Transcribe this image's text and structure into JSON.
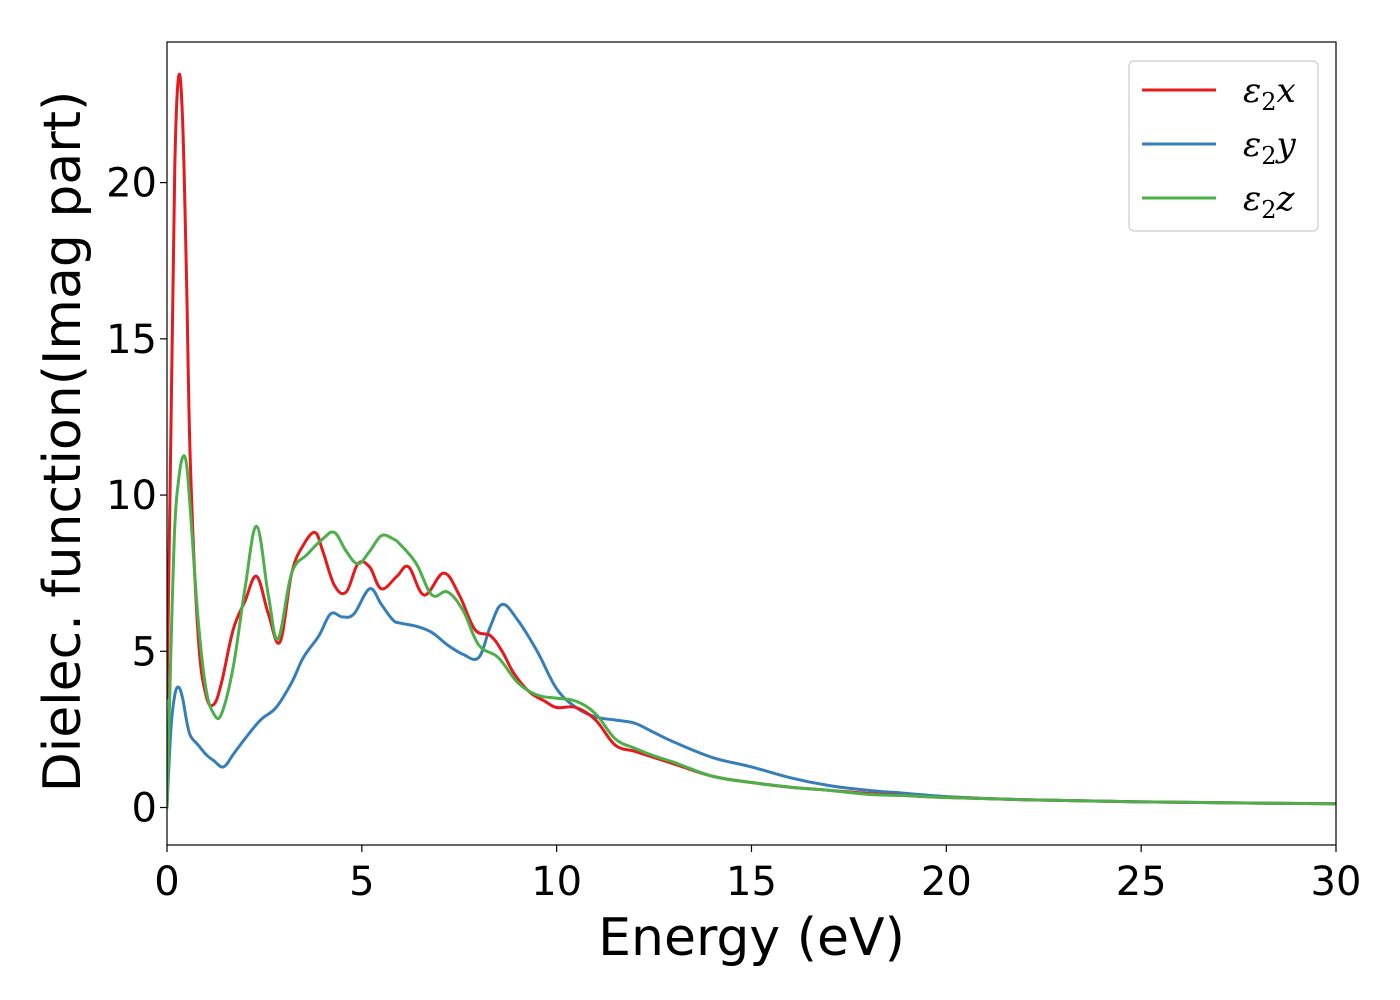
{
  "chart_data": {
    "type": "line",
    "title": "",
    "xlabel": "Energy (eV)",
    "ylabel": "Dielec. function(Imag part)",
    "xlim": [
      0,
      30
    ],
    "ylim": [
      -1.2,
      24.5
    ],
    "xticks": [
      0,
      5,
      10,
      15,
      20,
      25,
      30
    ],
    "yticks": [
      0,
      5,
      10,
      15,
      20
    ],
    "grid": false,
    "legend_position": "top-right",
    "series": [
      {
        "name": "ε2x",
        "legend_base": "ε",
        "legend_sub": "2",
        "legend_suffix": "x",
        "color": "#e41a1c",
        "x": [
          0,
          0.1,
          0.2,
          0.3,
          0.4,
          0.5,
          0.6,
          0.8,
          1.0,
          1.2,
          1.4,
          1.7,
          2.0,
          2.3,
          2.6,
          2.9,
          3.2,
          3.5,
          3.8,
          4.0,
          4.3,
          4.6,
          4.9,
          5.2,
          5.5,
          5.9,
          6.2,
          6.6,
          7.1,
          7.5,
          7.9,
          8.3,
          8.6,
          8.9,
          9.3,
          9.7,
          10.0,
          10.5,
          11.0,
          11.5,
          12.0,
          12.5,
          13.0,
          14.0,
          15.0,
          16.0,
          17.0,
          18.0,
          19.0,
          20.0,
          22.0,
          25.0,
          28.0,
          30.0
        ],
        "y": [
          3.5,
          12.0,
          20.5,
          23.4,
          22.0,
          17.0,
          11.0,
          5.5,
          3.6,
          3.3,
          4.0,
          5.7,
          6.6,
          7.4,
          6.2,
          5.3,
          7.5,
          8.4,
          8.8,
          8.2,
          7.1,
          6.9,
          7.8,
          7.7,
          7.0,
          7.4,
          7.7,
          6.8,
          7.5,
          6.8,
          5.7,
          5.5,
          5.0,
          4.3,
          3.7,
          3.4,
          3.2,
          3.2,
          2.8,
          2.0,
          1.8,
          1.6,
          1.4,
          1.0,
          0.8,
          0.65,
          0.55,
          0.45,
          0.38,
          0.32,
          0.25,
          0.18,
          0.14,
          0.12
        ]
      },
      {
        "name": "ε2y",
        "legend_base": "ε",
        "legend_sub": "2",
        "legend_suffix": "y",
        "color": "#377eb8",
        "x": [
          0,
          0.1,
          0.2,
          0.3,
          0.4,
          0.5,
          0.6,
          0.8,
          1.0,
          1.2,
          1.45,
          1.7,
          2.0,
          2.4,
          2.8,
          3.2,
          3.5,
          3.9,
          4.2,
          4.5,
          4.8,
          5.2,
          5.5,
          5.8,
          6.0,
          6.4,
          6.8,
          7.2,
          7.6,
          8.0,
          8.3,
          8.6,
          9.0,
          9.5,
          10.0,
          10.5,
          11.0,
          11.5,
          12.0,
          12.5,
          13.0,
          14.0,
          15.0,
          16.0,
          17.0,
          18.0,
          19.0,
          20.0,
          22.0,
          25.0,
          28.0,
          30.0
        ],
        "y": [
          0.0,
          2.5,
          3.6,
          3.85,
          3.5,
          2.8,
          2.3,
          2.0,
          1.7,
          1.5,
          1.3,
          1.7,
          2.2,
          2.8,
          3.2,
          4.0,
          4.8,
          5.5,
          6.2,
          6.1,
          6.2,
          7.0,
          6.5,
          6.0,
          5.9,
          5.8,
          5.6,
          5.2,
          4.9,
          4.8,
          5.8,
          6.5,
          6.0,
          5.0,
          3.8,
          3.2,
          2.9,
          2.8,
          2.7,
          2.4,
          2.1,
          1.6,
          1.3,
          0.95,
          0.7,
          0.55,
          0.45,
          0.35,
          0.25,
          0.18,
          0.14,
          0.12
        ]
      },
      {
        "name": "ε2z",
        "legend_base": "ε",
        "legend_sub": "2",
        "legend_suffix": "z",
        "color": "#4daf4a",
        "x": [
          0,
          0.1,
          0.2,
          0.3,
          0.4,
          0.5,
          0.6,
          0.8,
          1.0,
          1.2,
          1.4,
          1.7,
          2.0,
          2.3,
          2.6,
          2.85,
          3.2,
          3.6,
          4.0,
          4.3,
          4.6,
          4.9,
          5.2,
          5.5,
          5.8,
          6.0,
          6.4,
          6.8,
          7.2,
          7.6,
          8.0,
          8.5,
          9.0,
          9.5,
          10.0,
          10.5,
          11.0,
          11.5,
          12.0,
          12.5,
          13.0,
          14.0,
          15.0,
          16.0,
          17.0,
          18.0,
          19.0,
          20.0,
          22.0,
          25.0,
          28.0,
          30.0
        ],
        "y": [
          0.0,
          5.0,
          9.0,
          10.5,
          11.2,
          11.0,
          9.5,
          6.0,
          3.8,
          3.0,
          3.0,
          4.5,
          7.0,
          9.0,
          6.8,
          5.4,
          7.5,
          8.1,
          8.6,
          8.8,
          8.2,
          7.8,
          8.2,
          8.7,
          8.6,
          8.4,
          7.8,
          6.8,
          6.9,
          6.3,
          5.2,
          4.8,
          4.0,
          3.6,
          3.5,
          3.4,
          3.0,
          2.2,
          1.9,
          1.65,
          1.45,
          1.0,
          0.8,
          0.65,
          0.55,
          0.42,
          0.38,
          0.32,
          0.25,
          0.18,
          0.14,
          0.12
        ]
      }
    ]
  }
}
